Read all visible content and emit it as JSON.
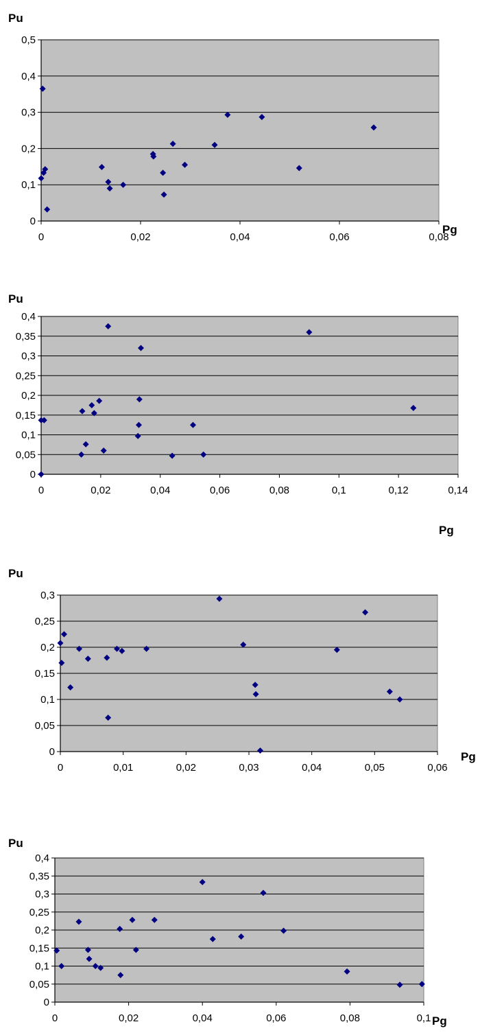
{
  "colors": {
    "plot_bg": "#c0c0c0",
    "grid": "#000000",
    "marker": "#000080"
  },
  "chart_data": [
    {
      "type": "scatter",
      "xlabel": "Pg",
      "ylabel": "Pu",
      "xlim": [
        0,
        0.08
      ],
      "ylim": [
        0,
        0.5
      ],
      "x_ticks": [
        "0",
        "0,02",
        "0,04",
        "0,06",
        "0,08"
      ],
      "y_ticks": [
        "0",
        "0,1",
        "0,2",
        "0,3",
        "0,4",
        "0,5"
      ],
      "grid": true,
      "series": [
        {
          "marker": "diamond",
          "x": [
            0.0,
            0.0003,
            0.0005,
            0.0008,
            0.0012,
            0.0122,
            0.0135,
            0.0138,
            0.0165,
            0.0225,
            0.0226,
            0.0245,
            0.0247,
            0.0265,
            0.0289,
            0.0349,
            0.0375,
            0.0444,
            0.0519,
            0.0669
          ],
          "y": [
            0.118,
            0.365,
            0.133,
            0.143,
            0.032,
            0.149,
            0.108,
            0.09,
            0.1,
            0.185,
            0.178,
            0.133,
            0.073,
            0.213,
            0.155,
            0.21,
            0.293,
            0.287,
            0.146,
            0.258
          ]
        }
      ]
    },
    {
      "type": "scatter",
      "xlabel": "Pg",
      "ylabel": "Pu",
      "xlim": [
        0,
        0.14
      ],
      "ylim": [
        0,
        0.4
      ],
      "x_ticks": [
        "0",
        "0,02",
        "0,04",
        "0,06",
        "0,08",
        "0,1",
        "0,12",
        "0,14"
      ],
      "y_ticks": [
        "0",
        "0,05",
        "0,1",
        "0,15",
        "0,2",
        "0,25",
        "0,3",
        "0,35",
        "0,4"
      ],
      "grid": true,
      "series": [
        {
          "marker": "diamond",
          "x": [
            0.0,
            0.0,
            0.001,
            0.0135,
            0.0138,
            0.015,
            0.017,
            0.0178,
            0.0195,
            0.021,
            0.0225,
            0.0325,
            0.0328,
            0.033,
            0.0335,
            0.044,
            0.051,
            0.0545,
            0.09,
            0.125
          ],
          "y": [
            0.0,
            0.137,
            0.137,
            0.05,
            0.16,
            0.076,
            0.175,
            0.155,
            0.186,
            0.06,
            0.375,
            0.097,
            0.125,
            0.19,
            0.32,
            0.047,
            0.125,
            0.05,
            0.36,
            0.168
          ]
        }
      ]
    },
    {
      "type": "scatter",
      "xlabel": "Pg",
      "ylabel": "Pu",
      "xlim": [
        0,
        0.06
      ],
      "ylim": [
        0,
        0.3
      ],
      "x_ticks": [
        "0",
        "0,01",
        "0,02",
        "0,03",
        "0,04",
        "0,05",
        "0,06"
      ],
      "y_ticks": [
        "0",
        "0,05",
        "0,1",
        "0,15",
        "0,2",
        "0,25",
        "0,3"
      ],
      "grid": true,
      "series": [
        {
          "marker": "diamond",
          "x": [
            0.0,
            0.0002,
            0.0006,
            0.0016,
            0.003,
            0.0044,
            0.0074,
            0.0076,
            0.009,
            0.0098,
            0.0137,
            0.0253,
            0.0291,
            0.031,
            0.0311,
            0.0318,
            0.044,
            0.0485,
            0.0524,
            0.054
          ],
          "y": [
            0.208,
            0.17,
            0.225,
            0.123,
            0.197,
            0.178,
            0.18,
            0.065,
            0.197,
            0.193,
            0.197,
            0.293,
            0.205,
            0.128,
            0.11,
            0.002,
            0.195,
            0.267,
            0.115,
            0.1
          ]
        }
      ]
    },
    {
      "type": "scatter",
      "xlabel": "Pg",
      "ylabel": "Pu",
      "xlim": [
        0,
        0.1
      ],
      "ylim": [
        0,
        0.4
      ],
      "x_ticks": [
        "0",
        "0,02",
        "0,04",
        "0,06",
        "0,08",
        "0,1"
      ],
      "y_ticks": [
        "0",
        "0,05",
        "0,1",
        "0,15",
        "0,2",
        "0,25",
        "0,3",
        "0,35",
        "0,4"
      ],
      "grid": true,
      "series": [
        {
          "marker": "diamond",
          "x": [
            0.0005,
            0.0018,
            0.0065,
            0.009,
            0.0093,
            0.011,
            0.0124,
            0.0176,
            0.0178,
            0.021,
            0.022,
            0.027,
            0.04,
            0.0428,
            0.0505,
            0.0565,
            0.062,
            0.0792,
            0.0935,
            0.0995
          ],
          "y": [
            0.143,
            0.1,
            0.223,
            0.145,
            0.12,
            0.1,
            0.095,
            0.203,
            0.075,
            0.228,
            0.145,
            0.228,
            0.333,
            0.175,
            0.182,
            0.303,
            0.198,
            0.085,
            0.048,
            0.05
          ]
        }
      ]
    }
  ]
}
